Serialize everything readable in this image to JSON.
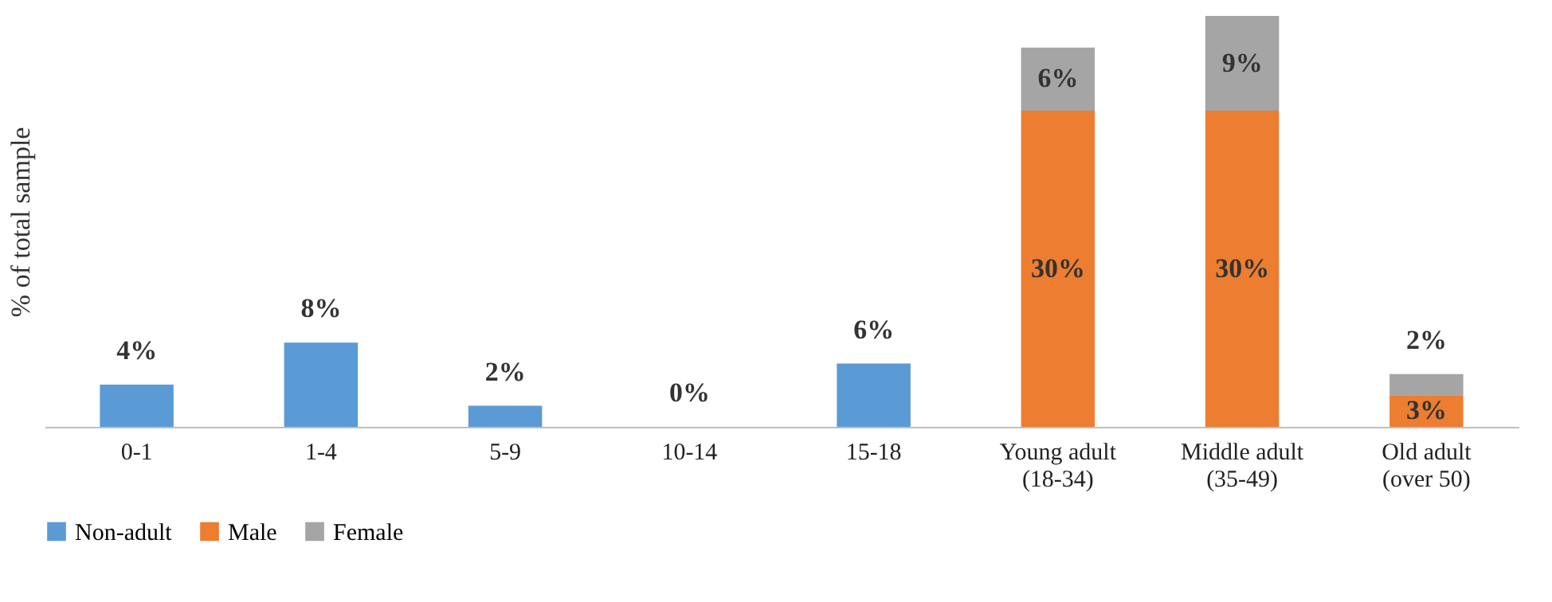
{
  "chart_data": {
    "type": "bar",
    "stacked": true,
    "ylabel": "% of total sample",
    "tick_labels": "x",
    "legend": "bottom",
    "grid": false,
    "categories": [
      "0-1",
      "1-4",
      "5-9",
      "10-14",
      "15-18",
      "Young adult\n(18-34)",
      "Middle adult\n(35-49)",
      "Old adult\n(over 50)"
    ],
    "series": [
      {
        "name": "Non-adult",
        "color": "#5b9bd5",
        "values": [
          4,
          8,
          2,
          0,
          6,
          null,
          null,
          null
        ],
        "value_labels": [
          "4%",
          "8%",
          "2%",
          "0%",
          "6%",
          null,
          null,
          null
        ]
      },
      {
        "name": "Male",
        "color": "#ed7d31",
        "values": [
          null,
          null,
          null,
          null,
          null,
          30,
          30,
          3
        ],
        "value_labels": [
          null,
          null,
          null,
          null,
          null,
          "30%",
          "30%",
          "3%"
        ]
      },
      {
        "name": "Female",
        "color": "#a5a5a5",
        "values": [
          null,
          null,
          null,
          null,
          null,
          6,
          9,
          2
        ],
        "value_labels": [
          null,
          null,
          null,
          null,
          null,
          "6%",
          "9%",
          "2%"
        ]
      }
    ]
  }
}
